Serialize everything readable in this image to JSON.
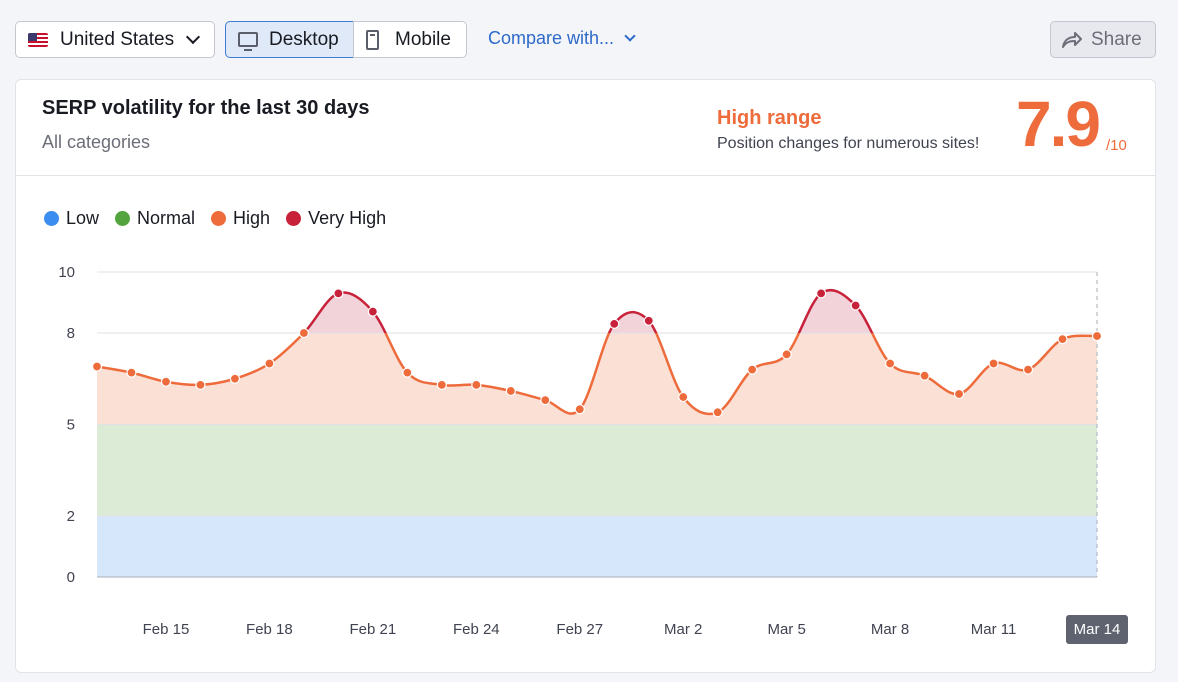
{
  "toolbar": {
    "country": "United States",
    "desktop_label": "Desktop",
    "mobile_label": "Mobile",
    "compare_label": "Compare with...",
    "share_label": "Share"
  },
  "card": {
    "title": "SERP volatility for the last 30 days",
    "subtitle": "All categories",
    "range_label": "High range",
    "range_desc": "Position changes for numerous sites!",
    "score": "7.9",
    "score_max": "/10"
  },
  "colors": {
    "accent": "#ee6b3b",
    "very_high": "#c8223a",
    "low": "#3b8ef0",
    "normal": "#54a43e",
    "band_low": "#d6e6fb",
    "band_normal": "#dcebd6",
    "band_high": "#fbe0d6",
    "link": "#2d6ac9"
  },
  "chart_data": {
    "type": "line",
    "title": "SERP volatility for the last 30 days",
    "ylim": [
      0,
      10
    ],
    "yticks": [
      "0",
      "2",
      "5",
      "8",
      "10"
    ],
    "ytick_values": [
      0,
      2,
      5,
      8,
      10
    ],
    "xticks": [
      "Feb 15",
      "Feb 18",
      "Feb 21",
      "Feb 24",
      "Feb 27",
      "Mar 2",
      "Mar 5",
      "Mar 8",
      "Mar 11",
      "Mar 14"
    ],
    "xtick_index": [
      2,
      5,
      8,
      11,
      14,
      17,
      20,
      23,
      26,
      29
    ],
    "highlight_label": "Mar 14",
    "legend": [
      {
        "name": "Low",
        "color": "#3b8ef0"
      },
      {
        "name": "Normal",
        "color": "#54a43e"
      },
      {
        "name": "High",
        "color": "#ee6b3b"
      },
      {
        "name": "Very High",
        "color": "#c8223a"
      }
    ],
    "bands": [
      {
        "name": "Low",
        "from": 0,
        "to": 2
      },
      {
        "name": "Normal",
        "from": 2,
        "to": 5
      },
      {
        "name": "High",
        "from": 5,
        "to": 8
      },
      {
        "name": "Very High",
        "from": 8,
        "to": 10
      }
    ],
    "x": [
      "Feb 13",
      "Feb 14",
      "Feb 15",
      "Feb 16",
      "Feb 17",
      "Feb 18",
      "Feb 19",
      "Feb 20",
      "Feb 21",
      "Feb 22",
      "Feb 23",
      "Feb 24",
      "Feb 25",
      "Feb 26",
      "Feb 27",
      "Feb 28",
      "Mar 1",
      "Mar 2",
      "Mar 3",
      "Mar 4",
      "Mar 5",
      "Mar 6",
      "Mar 7",
      "Mar 8",
      "Mar 9",
      "Mar 10",
      "Mar 11",
      "Mar 12",
      "Mar 13",
      "Mar 14"
    ],
    "values": [
      6.9,
      6.7,
      6.4,
      6.3,
      6.5,
      7.0,
      8.0,
      9.3,
      8.7,
      6.7,
      6.3,
      6.3,
      6.1,
      5.8,
      5.5,
      8.3,
      8.4,
      5.9,
      5.4,
      6.8,
      7.3,
      9.3,
      8.9,
      7.0,
      6.6,
      6.0,
      7.0,
      6.8,
      7.8,
      7.9
    ]
  }
}
